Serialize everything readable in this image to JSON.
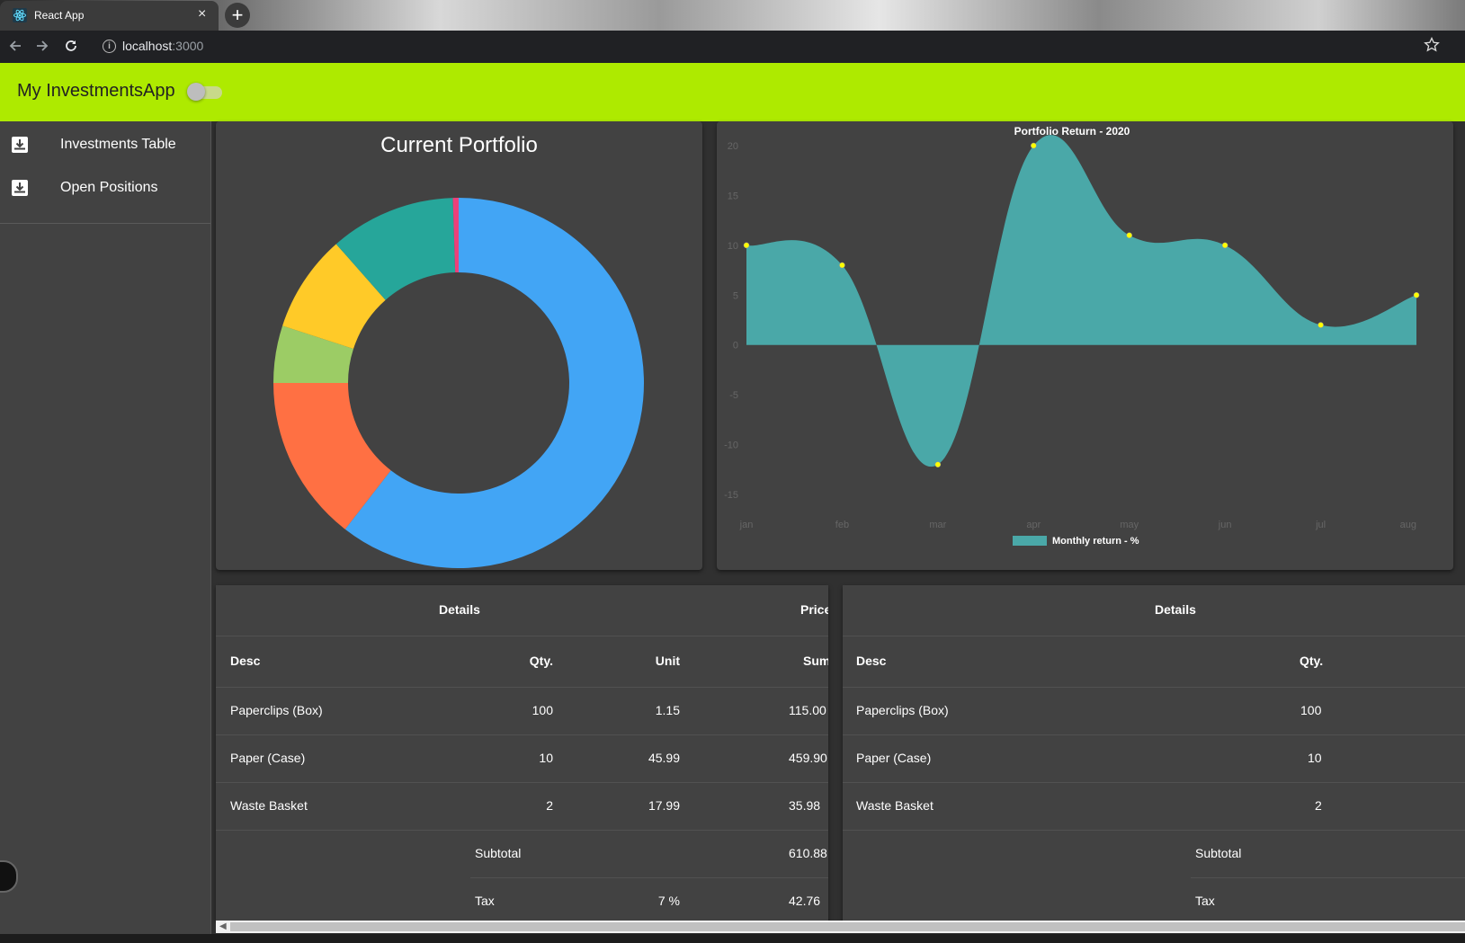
{
  "browser": {
    "tab_title": "React App",
    "tab_close": "×",
    "new_tab": "+",
    "url_host": "localhost",
    "url_port": ":3000"
  },
  "app": {
    "title": "My InvestmentsApp",
    "theme_toggle_on": false,
    "accent": "#aeea00"
  },
  "sidebar": {
    "items": [
      {
        "label": "Investments Table",
        "icon": "download-box-icon"
      },
      {
        "label": "Open Positions",
        "icon": "download-box-icon"
      }
    ]
  },
  "portfolio": {
    "title": "Current Portfolio",
    "chart_data": {
      "type": "pie",
      "donut": true,
      "slices": [
        {
          "color": "#42a5f5",
          "value": 60.5
        },
        {
          "color": "#ff7043",
          "value": 14.5
        },
        {
          "color": "#9ccc65",
          "value": 5.0
        },
        {
          "color": "#ffca28",
          "value": 8.5
        },
        {
          "color": "#26a69a",
          "value": 11.0
        },
        {
          "color": "#ec407a",
          "value": 0.5
        }
      ]
    }
  },
  "returns": {
    "chart_data": {
      "type": "area",
      "title": "Portfolio Return - 2020",
      "x": [
        "jan",
        "feb",
        "mar",
        "apr",
        "may",
        "jun",
        "jul",
        "aug"
      ],
      "series": [
        {
          "name": "Monthly return - %",
          "values": [
            10,
            8,
            -12,
            20,
            11,
            10,
            2,
            5
          ],
          "color": "#4aa8a8"
        }
      ],
      "yticks": [
        20,
        15,
        10,
        5,
        0,
        -5,
        -10,
        -15
      ],
      "ylim": [
        -15,
        20
      ],
      "grid": false,
      "legend": "bottom",
      "point_color": "#ffff00"
    }
  },
  "table_left": {
    "group_headers": [
      "Details",
      "Price"
    ],
    "columns": [
      "Desc",
      "Qty.",
      "Unit",
      "Sum"
    ],
    "rows": [
      [
        "Paperclips (Box)",
        "100",
        "1.15",
        "115.00"
      ],
      [
        "Paper (Case)",
        "10",
        "45.99",
        "459.90"
      ],
      [
        "Waste Basket",
        "2",
        "17.99",
        "35.98"
      ]
    ],
    "subtotal_label": "Subtotal",
    "subtotal": "610.88",
    "tax_label": "Tax",
    "tax_rate": "7 %",
    "tax": "42.76"
  },
  "table_right": {
    "group_headers": [
      "Details"
    ],
    "columns": [
      "Desc",
      "Qty."
    ],
    "rows": [
      [
        "Paperclips (Box)",
        "100"
      ],
      [
        "Paper (Case)",
        "10"
      ],
      [
        "Waste Basket",
        "2"
      ]
    ],
    "subtotal_label": "Subtotal",
    "tax_label": "Tax"
  }
}
